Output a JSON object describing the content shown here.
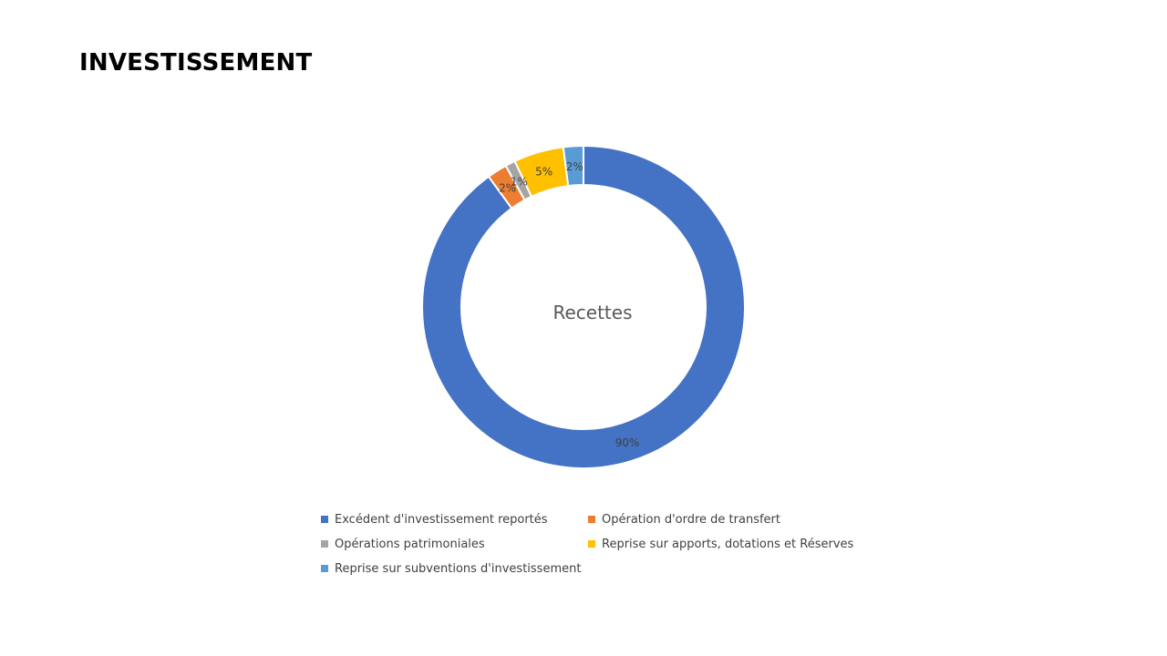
{
  "page": {
    "title": "INVESTISSEMENT"
  },
  "chart_data": {
    "type": "pie",
    "variant": "doughnut",
    "title": "Recettes",
    "legend_position": "bottom",
    "categories": [
      "Excédent d'investissement reportés",
      "Opération d'ordre de transfert",
      "Opérations patrimoniales",
      "Reprise sur apports, dotations et Réserves",
      "Reprise sur subventions d'investissement"
    ],
    "values": [
      90,
      2,
      1,
      5,
      2
    ],
    "data_labels": [
      "90%",
      "2%",
      "1%",
      "5%",
      "2%"
    ],
    "colors": [
      "#4472C4",
      "#ED7D31",
      "#A5A5A5",
      "#FFC000",
      "#5B9BD5"
    ]
  }
}
